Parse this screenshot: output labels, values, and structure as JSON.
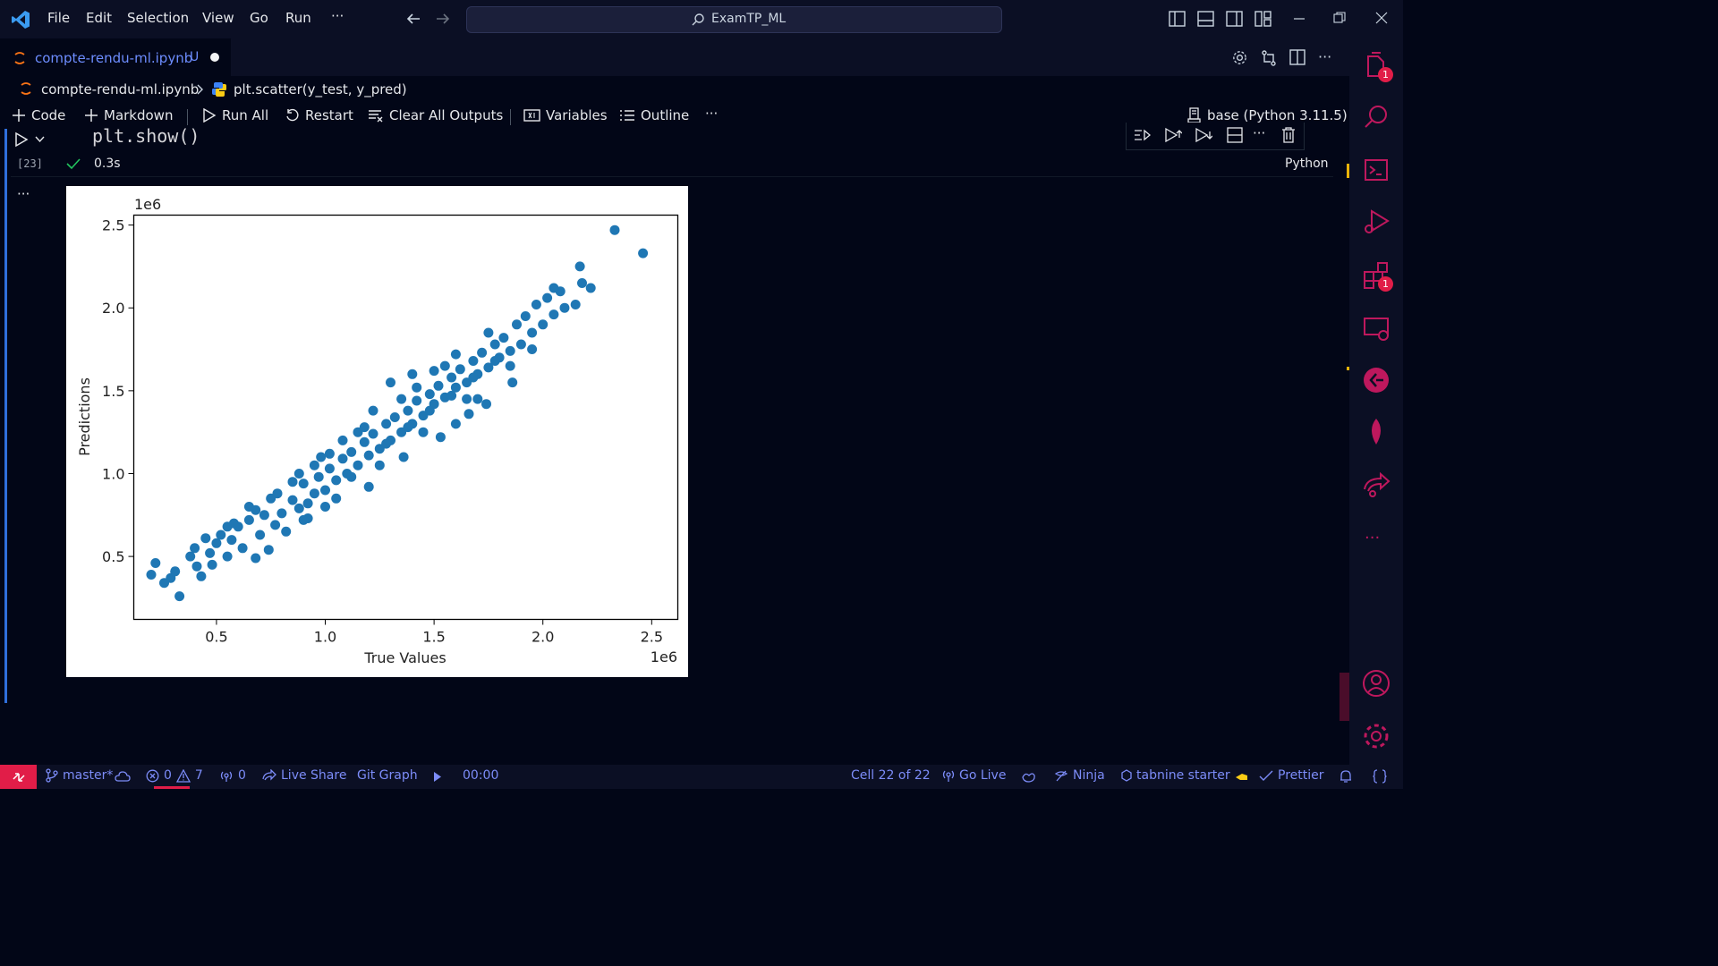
{
  "window": {
    "menu": [
      "File",
      "Edit",
      "Selection",
      "View",
      "Go",
      "Run",
      "···"
    ],
    "search_text": "ExamTP_ML"
  },
  "tab": {
    "filename": "compte-rendu-ml.ipynb",
    "status": "U"
  },
  "breadcrumb": {
    "file": "compte-rendu-ml.ipynb",
    "symbol": "plt.scatter(y_test, y_pred)"
  },
  "toolbar": {
    "code": "Code",
    "markdown": "Markdown",
    "run_all": "Run All",
    "restart": "Restart",
    "clear_outputs": "Clear All Outputs",
    "variables": "Variables",
    "outline": "Outline",
    "more": "···",
    "kernel": "base (Python 3.11.5)"
  },
  "cell": {
    "code": "plt.show()",
    "exec_count": "[23]",
    "duration": "0.3s",
    "language": "Python",
    "output_more": "···"
  },
  "activity": {
    "explorer_badge": "1",
    "extensions_badge": "1",
    "more": "···"
  },
  "statusbar": {
    "branch": "master*",
    "errors": "0",
    "warnings": "7",
    "ports": "0",
    "live_share": "Live Share",
    "git_graph": "Git Graph",
    "timer": "00:00",
    "cell_position": "Cell 22 of 22",
    "go_live": "Go Live",
    "ninja": "Ninja",
    "tabnine": "tabnine starter",
    "prettier": "Prettier"
  },
  "colors": {
    "accent": "#7c8cf8",
    "remote": "#e11d48",
    "series": "#1f77b4",
    "tab_text": "#6d8dff"
  },
  "chart_data": {
    "type": "scatter",
    "xlabel": "True Values",
    "ylabel": "Predictions",
    "x_offset_label": "1e6",
    "y_offset_label": "1e6",
    "xlim": [
      0.12,
      2.62
    ],
    "ylim": [
      0.12,
      2.56
    ],
    "xticks": [
      "0.5",
      "1.0",
      "1.5",
      "2.0",
      "2.5"
    ],
    "yticks": [
      "0.5",
      "1.0",
      "1.5",
      "2.0",
      "2.5"
    ],
    "xtick_values": [
      0.5,
      1.0,
      1.5,
      2.0,
      2.5
    ],
    "ytick_values": [
      0.5,
      1.0,
      1.5,
      2.0,
      2.5
    ],
    "grid": false,
    "series": [
      {
        "points": [
          [
            0.2,
            0.39
          ],
          [
            0.22,
            0.46
          ],
          [
            0.26,
            0.34
          ],
          [
            0.29,
            0.37
          ],
          [
            0.31,
            0.41
          ],
          [
            0.33,
            0.26
          ],
          [
            0.38,
            0.5
          ],
          [
            0.4,
            0.55
          ],
          [
            0.41,
            0.44
          ],
          [
            0.43,
            0.38
          ],
          [
            0.45,
            0.61
          ],
          [
            0.47,
            0.52
          ],
          [
            0.48,
            0.45
          ],
          [
            0.5,
            0.58
          ],
          [
            0.52,
            0.63
          ],
          [
            0.55,
            0.5
          ],
          [
            0.57,
            0.6
          ],
          [
            0.6,
            0.68
          ],
          [
            0.62,
            0.55
          ],
          [
            0.65,
            0.72
          ],
          [
            0.68,
            0.49
          ],
          [
            0.7,
            0.63
          ],
          [
            0.72,
            0.75
          ],
          [
            0.74,
            0.54
          ],
          [
            0.77,
            0.69
          ],
          [
            0.8,
            0.76
          ],
          [
            0.82,
            0.65
          ],
          [
            0.85,
            0.84
          ],
          [
            0.88,
            0.79
          ],
          [
            0.9,
            0.94
          ],
          [
            0.92,
            0.73
          ],
          [
            0.95,
            0.88
          ],
          [
            0.97,
            0.98
          ],
          [
            1.0,
            0.9
          ],
          [
            1.02,
            1.03
          ],
          [
            1.05,
            0.96
          ],
          [
            1.08,
            1.09
          ],
          [
            1.1,
            1.0
          ],
          [
            1.12,
            1.13
          ],
          [
            1.15,
            1.05
          ],
          [
            1.18,
            1.19
          ],
          [
            1.2,
            1.11
          ],
          [
            1.22,
            1.24
          ],
          [
            1.25,
            1.15
          ],
          [
            1.28,
            1.3
          ],
          [
            1.3,
            1.2
          ],
          [
            1.32,
            1.34
          ],
          [
            1.35,
            1.25
          ],
          [
            1.38,
            1.38
          ],
          [
            1.4,
            1.3
          ],
          [
            1.42,
            1.44
          ],
          [
            1.45,
            1.35
          ],
          [
            1.48,
            1.48
          ],
          [
            1.5,
            1.42
          ],
          [
            1.52,
            1.53
          ],
          [
            1.55,
            1.46
          ],
          [
            1.58,
            1.58
          ],
          [
            1.6,
            1.52
          ],
          [
            1.62,
            1.63
          ],
          [
            1.65,
            1.55
          ],
          [
            1.68,
            1.68
          ],
          [
            1.7,
            1.6
          ],
          [
            1.72,
            1.73
          ],
          [
            1.75,
            1.64
          ],
          [
            1.78,
            1.78
          ],
          [
            1.8,
            1.7
          ],
          [
            1.82,
            1.82
          ],
          [
            1.85,
            1.74
          ],
          [
            1.88,
            1.9
          ],
          [
            1.9,
            1.78
          ],
          [
            1.92,
            1.95
          ],
          [
            1.95,
            1.85
          ],
          [
            1.97,
            2.02
          ],
          [
            2.0,
            1.9
          ],
          [
            2.02,
            2.06
          ],
          [
            2.05,
            1.96
          ],
          [
            2.08,
            2.1
          ],
          [
            2.1,
            2.0
          ],
          [
            2.15,
            2.02
          ],
          [
            2.17,
            2.25
          ],
          [
            2.18,
            2.15
          ],
          [
            2.22,
            2.12
          ],
          [
            2.33,
            2.47
          ],
          [
            2.46,
            2.33
          ],
          [
            0.95,
            1.05
          ],
          [
            1.05,
            0.85
          ],
          [
            1.15,
            1.25
          ],
          [
            1.25,
            1.05
          ],
          [
            1.35,
            1.45
          ],
          [
            1.45,
            1.25
          ],
          [
            1.55,
            1.65
          ],
          [
            1.65,
            1.45
          ],
          [
            1.75,
            1.85
          ],
          [
            1.85,
            1.65
          ],
          [
            0.85,
            0.95
          ],
          [
            0.75,
            0.85
          ],
          [
            1.3,
            1.55
          ],
          [
            1.6,
            1.3
          ],
          [
            1.4,
            1.6
          ],
          [
            1.7,
            1.45
          ],
          [
            0.65,
            0.8
          ],
          [
            0.55,
            0.68
          ],
          [
            1.12,
            0.98
          ],
          [
            1.28,
            1.18
          ],
          [
            1.48,
            1.38
          ],
          [
            1.58,
            1.47
          ],
          [
            1.02,
            1.12
          ],
          [
            0.92,
            0.82
          ],
          [
            1.18,
            1.28
          ],
          [
            1.38,
            1.28
          ],
          [
            1.68,
            1.58
          ],
          [
            1.78,
            1.68
          ],
          [
            1.95,
            1.75
          ],
          [
            2.05,
            2.12
          ],
          [
            1.86,
            1.55
          ],
          [
            1.74,
            1.42
          ],
          [
            1.6,
            1.72
          ],
          [
            1.5,
            1.62
          ],
          [
            1.42,
            1.52
          ],
          [
            1.22,
            1.38
          ],
          [
            1.08,
            1.2
          ],
          [
            0.98,
            1.1
          ],
          [
            0.88,
            1.0
          ],
          [
            0.78,
            0.88
          ],
          [
            0.68,
            0.78
          ],
          [
            0.58,
            0.7
          ],
          [
            1.66,
            1.36
          ],
          [
            1.53,
            1.22
          ],
          [
            1.36,
            1.1
          ],
          [
            1.2,
            0.92
          ],
          [
            1.0,
            0.8
          ],
          [
            0.9,
            0.72
          ]
        ]
      }
    ]
  }
}
